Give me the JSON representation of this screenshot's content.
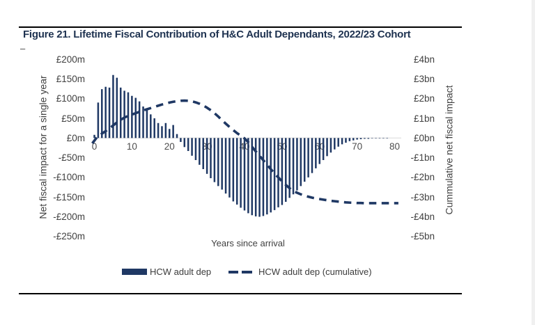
{
  "page": {
    "title": "Figure 21. Lifetime Fiscal Contribution of H&C Adult Dependants, 2022/23 Cohort",
    "stray_dash": "–",
    "colors": {
      "navy": "#1f3864",
      "title_text": "#1e3250",
      "axis_text": "#404040",
      "gridline": "#d9d9d9",
      "rule": "#000000",
      "page_edge": "#f0f0f0"
    }
  },
  "chart_data": {
    "type": "bar",
    "title": "Figure 21. Lifetime Fiscal Contribution of H&C Adult Dependants, 2022/23 Cohort",
    "xlabel": "Years since arrival",
    "x_ticks": [
      0,
      10,
      20,
      30,
      40,
      50,
      60,
      70,
      80
    ],
    "x_range": [
      0,
      81
    ],
    "axes": {
      "left": {
        "title": "Net fiscal impact for a single year",
        "tick_labels": [
          "£200m",
          "£150m",
          "£100m",
          "£50m",
          "£0m",
          "-£50m",
          "-£100m",
          "-£150m",
          "-£200m",
          "-£250m"
        ],
        "tick_values_m": [
          200,
          150,
          100,
          50,
          0,
          -50,
          -100,
          -150,
          -200,
          -250
        ]
      },
      "right": {
        "title": "Cummulative net fiscal impact",
        "tick_labels": [
          "£4bn",
          "£3bn",
          "£2bn",
          "£1bn",
          "£0bn",
          "-£1bn",
          "-£2bn",
          "-£3bn",
          "-£4bn",
          "-£5bn"
        ],
        "tick_values_bn": [
          4,
          3,
          2,
          1,
          0,
          -1,
          -2,
          -3,
          -4,
          -5
        ]
      }
    },
    "series": [
      {
        "name": "HCW adult dep",
        "type": "bar",
        "axis": "left",
        "unit": "£m",
        "years_start": 0,
        "values": [
          8,
          90,
          124,
          130,
          128,
          160,
          153,
          128,
          120,
          116,
          107,
          102,
          93,
          80,
          72,
          60,
          50,
          38,
          30,
          38,
          23,
          33,
          10,
          -10,
          -23,
          -33,
          -45,
          -56,
          -68,
          -79,
          -91,
          -102,
          -112,
          -122,
          -131,
          -141,
          -151,
          -161,
          -169,
          -177,
          -184,
          -191,
          -196,
          -199,
          -200,
          -198,
          -194,
          -189,
          -183,
          -176,
          -170,
          -162,
          -152,
          -143,
          -133,
          -122,
          -111,
          -100,
          -89,
          -77,
          -66,
          -56,
          -46,
          -37,
          -29,
          -22,
          -16,
          -12,
          -8,
          -6,
          -4,
          -3,
          -2,
          -2,
          -1,
          -1,
          -1,
          -1,
          -1,
          0,
          0,
          0
        ]
      },
      {
        "name": "HCW adult dep (cumulative)",
        "type": "dashed-line",
        "axis": "right",
        "unit": "£bn",
        "years_start": 0,
        "values": [
          0.008,
          0.1,
          0.22,
          0.35,
          0.48,
          0.64,
          0.79,
          0.92,
          1.04,
          1.12,
          1.19,
          1.26,
          1.33,
          1.4,
          1.46,
          1.52,
          1.58,
          1.64,
          1.7,
          1.75,
          1.8,
          1.84,
          1.87,
          1.89,
          1.9,
          1.89,
          1.86,
          1.81,
          1.74,
          1.65,
          1.54,
          1.41,
          1.26,
          1.09,
          0.91,
          0.73,
          0.56,
          0.4,
          0.25,
          0.12,
          -0.02,
          -0.21,
          -0.45,
          -0.68,
          -0.9,
          -1.13,
          -1.35,
          -1.58,
          -1.8,
          -2.0,
          -2.2,
          -2.38,
          -2.55,
          -2.68,
          -2.78,
          -2.86,
          -2.93,
          -2.98,
          -3.03,
          -3.07,
          -3.1,
          -3.13,
          -3.16,
          -3.19,
          -3.21,
          -3.23,
          -3.25,
          -3.27,
          -3.28,
          -3.29,
          -3.3,
          -3.3,
          -3.31,
          -3.31,
          -3.31,
          -3.31,
          -3.31,
          -3.31,
          -3.31,
          -3.31,
          -3.31,
          -3.31
        ]
      }
    ],
    "legend_position": "bottom"
  }
}
